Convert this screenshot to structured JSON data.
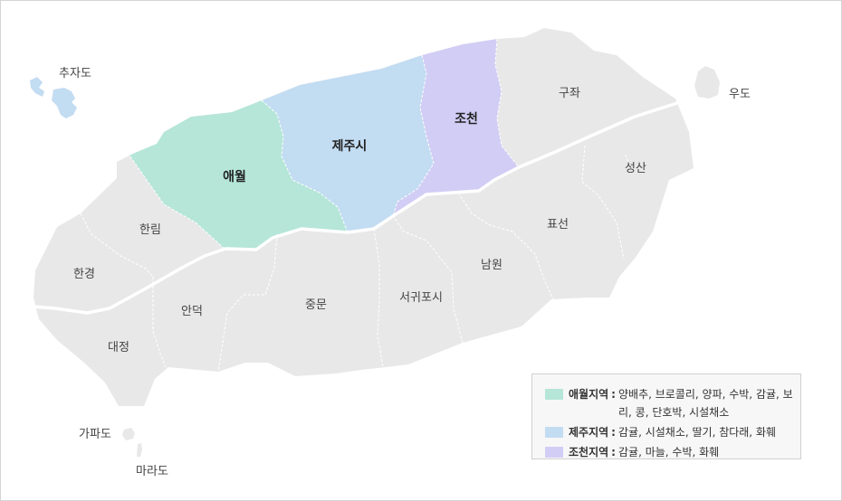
{
  "map": {
    "regions": [
      {
        "id": "aewol",
        "label": "애월",
        "color": "#b5e6d8"
      },
      {
        "id": "jeju",
        "label": "제주시",
        "color": "#c2dcf2"
      },
      {
        "id": "jocheon",
        "label": "조천",
        "color": "#d2cdf5"
      },
      {
        "id": "gujwa",
        "label": "구좌",
        "color": "#e8e8e8"
      },
      {
        "id": "seongsan",
        "label": "성산",
        "color": "#e8e8e8"
      },
      {
        "id": "pyoseon",
        "label": "표선",
        "color": "#e8e8e8"
      },
      {
        "id": "namwon",
        "label": "남원",
        "color": "#e8e8e8"
      },
      {
        "id": "seogwipo",
        "label": "서귀포시",
        "color": "#e8e8e8"
      },
      {
        "id": "jungmun",
        "label": "중문",
        "color": "#e8e8e8"
      },
      {
        "id": "andeok",
        "label": "안덕",
        "color": "#e8e8e8"
      },
      {
        "id": "daejeong",
        "label": "대정",
        "color": "#e8e8e8"
      },
      {
        "id": "hangyeong",
        "label": "한경",
        "color": "#e8e8e8"
      },
      {
        "id": "hallim",
        "label": "한림",
        "color": "#e8e8e8"
      }
    ],
    "islands": [
      {
        "id": "chuja",
        "label": "추자도",
        "color": "#c2dcf2"
      },
      {
        "id": "udo",
        "label": "우도",
        "color": "#e8e8e8"
      },
      {
        "id": "gapa",
        "label": "가파도",
        "color": "#e8e8e8"
      },
      {
        "id": "mara",
        "label": "마라도",
        "color": "#e8e8e8"
      }
    ],
    "land_color": "#e8e8e8",
    "road_color": "#ffffff"
  },
  "legend": {
    "items": [
      {
        "title": "애월지역",
        "sep": ":",
        "items_text": "양배추, 브로콜리, 양파, 수박, 감귤, 보리, 콩, 단호박, 시설채소",
        "color": "#b5e6d8"
      },
      {
        "title": "제주지역",
        "sep": ":",
        "items_text": "감귤, 시설채소, 딸기, 참다래, 화훼",
        "color": "#c2dcf2"
      },
      {
        "title": "조천지역",
        "sep": ":",
        "items_text": "감귤, 마늘, 수박, 화훼",
        "color": "#d2cdf5"
      }
    ]
  }
}
